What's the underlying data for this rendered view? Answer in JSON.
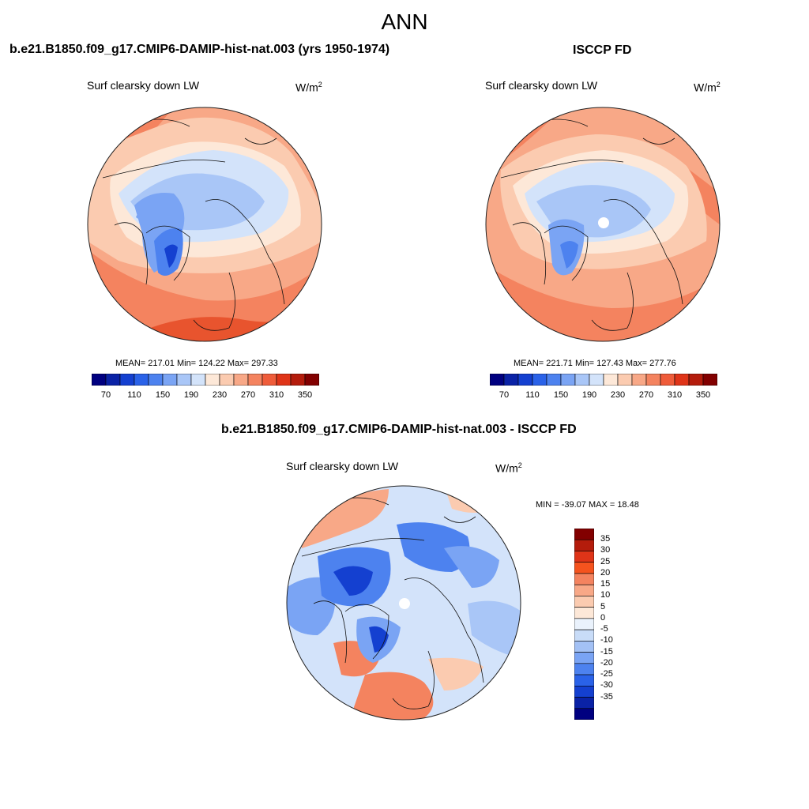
{
  "main_title": "ANN",
  "panels": [
    {
      "title": "b.e21.B1850.f09_g17.CMIP6-DAMIP-hist-nat.003 (yrs 1950-1974)",
      "variable": "Surf clearsky down LW",
      "units_base": "W/m",
      "units_exp": "2",
      "stats": "MEAN= 217.01  Min= 124.22  Max= 297.33"
    },
    {
      "title": "ISCCP FD",
      "variable": "Surf clearsky down LW",
      "units_base": "W/m",
      "units_exp": "2",
      "stats": "MEAN= 221.71  Min= 127.43  Max= 277.76"
    },
    {
      "title": "b.e21.B1850.f09_g17.CMIP6-DAMIP-hist-nat.003 - ISCCP FD",
      "variable": "Surf clearsky down LW",
      "units_base": "W/m",
      "units_exp": "2",
      "stats": "MIN = -39.07 MAX =  18.48"
    }
  ],
  "abs_colorbar": {
    "colors": [
      "#000080",
      "#0a22a6",
      "#1440d0",
      "#2a62e8",
      "#4d82ef",
      "#7aa4f4",
      "#a9c6f7",
      "#d3e3fa",
      "#fde8d8",
      "#fbcbb0",
      "#f8a887",
      "#f4835f",
      "#ef5c3a",
      "#df3418",
      "#b41c0c",
      "#820000"
    ],
    "tick_labels": [
      "70",
      "110",
      "150",
      "190",
      "230",
      "270",
      "310",
      "350"
    ]
  },
  "diff_colorbar": {
    "colors": [
      "#820000",
      "#b41c0c",
      "#df3418",
      "#f5531e",
      "#f4835f",
      "#f8a887",
      "#fbcbb0",
      "#fde8d8",
      "#eaf2fc",
      "#c8dcf8",
      "#a3c1f5",
      "#7aa4f4",
      "#4d82ef",
      "#2a62e8",
      "#1440d0",
      "#0a22a6",
      "#000080"
    ],
    "tick_labels": [
      "35",
      "30",
      "25",
      "20",
      "15",
      "10",
      "5",
      "0",
      "-5",
      "-10",
      "-15",
      "-20",
      "-25",
      "-30",
      "-35"
    ]
  },
  "map_colors": {
    "deep_red": "#e8542e",
    "mid_red": "#f4835f",
    "light_orange": "#f8a887",
    "peach": "#fbcbb0",
    "cream": "#fde8d8",
    "pale_blue": "#d3e3fa",
    "light_blue": "#a9c6f7",
    "mid_blue": "#7aa4f4",
    "blue": "#4d82ef",
    "deep_blue": "#1440d0",
    "coast": "#111111"
  }
}
